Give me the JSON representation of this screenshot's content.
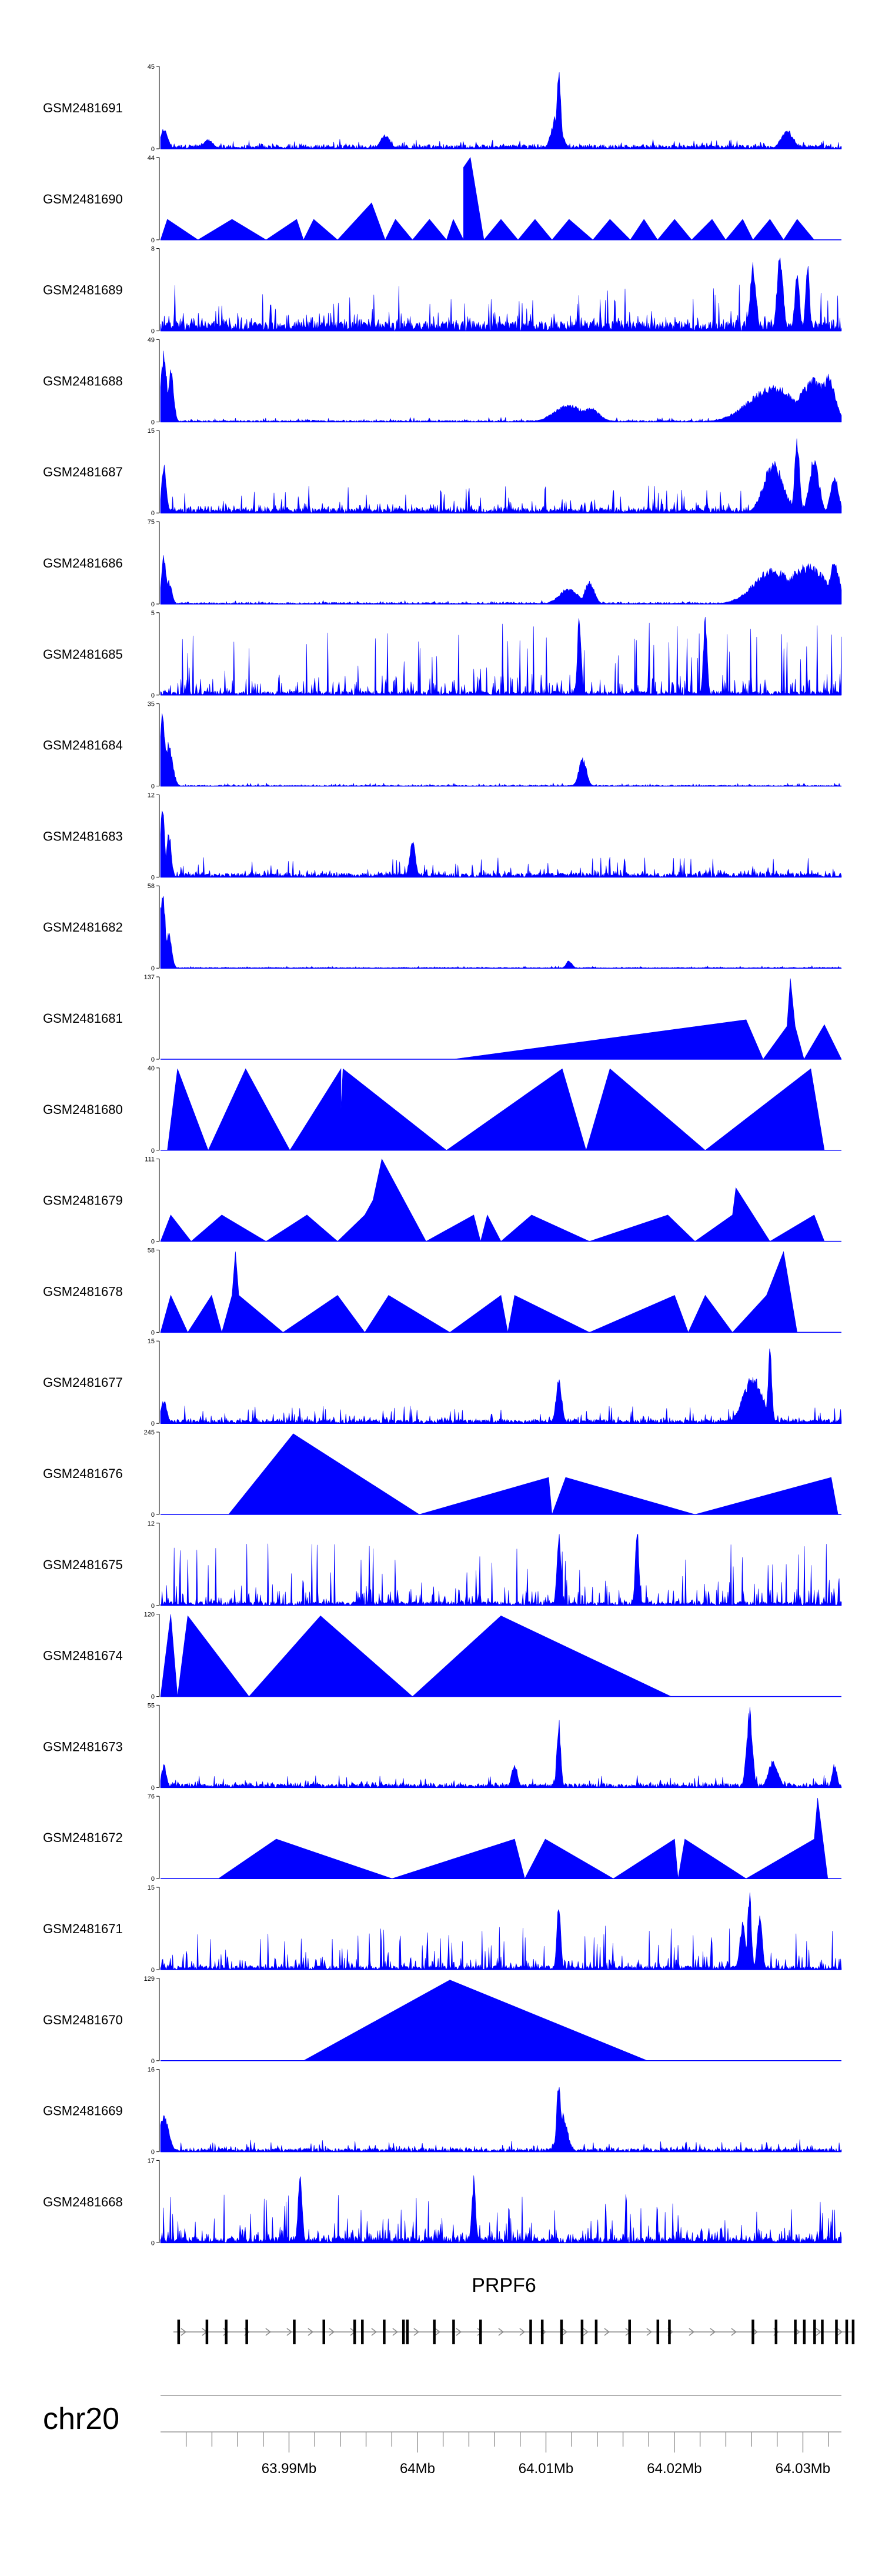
{
  "chart_data": {
    "type": "area",
    "title": "",
    "chromosome": "chr20",
    "gene": {
      "name": "PRPF6",
      "strand": "+",
      "start_mb": 63.981,
      "end_mb": 64.034,
      "exons_mb": [
        63.9814,
        63.9836,
        63.9851,
        63.9867,
        63.9904,
        63.9927,
        63.9951,
        63.9957,
        63.9974,
        63.9989,
        63.9992,
        64.0013,
        64.0028,
        64.0049,
        64.0088,
        64.0097,
        64.0112,
        64.0128,
        64.0139,
        64.0165,
        64.0187,
        64.0196,
        64.0261,
        64.0279,
        64.0294,
        64.0301,
        64.0309,
        64.0315,
        64.0326,
        64.0334,
        64.0339
      ]
    },
    "xaxis": {
      "range_mb": [
        63.98,
        64.033
      ],
      "tick_labels": [
        "63.99Mb",
        "64Mb",
        "64.01Mb",
        "64.02Mb",
        "64.03Mb"
      ],
      "tick_values_mb": [
        63.99,
        64.0,
        64.01,
        64.02,
        64.03
      ]
    },
    "fill_color": "#0000ff",
    "series": [
      {
        "name": "GSM2481691",
        "ymax": 45,
        "kind": "dense",
        "base": 0.05,
        "noise": 0.08,
        "peaks": [
          [
            0.585,
            1.0,
            0.004
          ],
          [
            0.582,
            0.45,
            0.01
          ],
          [
            0.92,
            0.25,
            0.012
          ],
          [
            0.005,
            0.25,
            0.008
          ],
          [
            0.33,
            0.18,
            0.01
          ],
          [
            0.07,
            0.12,
            0.01
          ]
        ]
      },
      {
        "name": "GSM2481690",
        "ymax": 44,
        "kind": "triangles",
        "pts": [
          [
            0.0,
            0
          ],
          [
            0.01,
            0.25
          ],
          [
            0.055,
            0
          ],
          [
            0.105,
            0.25
          ],
          [
            0.155,
            0
          ],
          [
            0.2,
            0.25
          ],
          [
            0.21,
            0
          ],
          [
            0.225,
            0.25
          ],
          [
            0.26,
            0
          ],
          [
            0.31,
            0.45
          ],
          [
            0.33,
            0
          ],
          [
            0.345,
            0.25
          ],
          [
            0.37,
            0
          ],
          [
            0.395,
            0.25
          ],
          [
            0.42,
            0
          ],
          [
            0.43,
            0.25
          ],
          [
            0.445,
            0
          ],
          [
            0.445,
            0.88
          ],
          [
            0.455,
            1.0
          ],
          [
            0.475,
            0
          ],
          [
            0.5,
            0.25
          ],
          [
            0.525,
            0
          ],
          [
            0.55,
            0.25
          ],
          [
            0.575,
            0
          ],
          [
            0.6,
            0.25
          ],
          [
            0.635,
            0
          ],
          [
            0.66,
            0.25
          ],
          [
            0.69,
            0
          ],
          [
            0.71,
            0.25
          ],
          [
            0.73,
            0
          ],
          [
            0.755,
            0.25
          ],
          [
            0.78,
            0
          ],
          [
            0.81,
            0.25
          ],
          [
            0.83,
            0
          ],
          [
            0.855,
            0.25
          ],
          [
            0.87,
            0
          ],
          [
            0.895,
            0.25
          ],
          [
            0.915,
            0
          ],
          [
            0.935,
            0.25
          ],
          [
            0.96,
            0
          ]
        ]
      },
      {
        "name": "GSM2481689",
        "ymax": 8,
        "kind": "dense",
        "base": 0.12,
        "noise": 0.5,
        "peaks": [
          [
            0.87,
            0.85,
            0.006
          ],
          [
            0.91,
            1.0,
            0.006
          ],
          [
            0.935,
            0.7,
            0.005
          ],
          [
            0.95,
            0.9,
            0.004
          ]
        ]
      },
      {
        "name": "GSM2481688",
        "ymax": 49,
        "kind": "dense",
        "base": 0.02,
        "noise": 0.04,
        "peaks": [
          [
            0.005,
            0.9,
            0.006
          ],
          [
            0.015,
            0.65,
            0.006
          ],
          [
            0.6,
            0.22,
            0.03
          ],
          [
            0.63,
            0.18,
            0.02
          ],
          [
            0.9,
            0.45,
            0.05
          ],
          [
            0.96,
            0.55,
            0.03
          ],
          [
            0.98,
            0.6,
            0.015
          ]
        ]
      },
      {
        "name": "GSM2481687",
        "ymax": 15,
        "kind": "dense",
        "base": 0.06,
        "noise": 0.28,
        "peaks": [
          [
            0.005,
            0.6,
            0.005
          ],
          [
            0.9,
            0.65,
            0.02
          ],
          [
            0.935,
            1.0,
            0.005
          ],
          [
            0.96,
            0.7,
            0.01
          ],
          [
            0.99,
            0.5,
            0.008
          ]
        ]
      },
      {
        "name": "GSM2481686",
        "ymax": 75,
        "kind": "dense",
        "base": 0.02,
        "noise": 0.03,
        "peaks": [
          [
            0.005,
            0.6,
            0.005
          ],
          [
            0.012,
            0.3,
            0.006
          ],
          [
            0.6,
            0.2,
            0.02
          ],
          [
            0.63,
            0.28,
            0.01
          ],
          [
            0.9,
            0.45,
            0.04
          ],
          [
            0.95,
            0.5,
            0.04
          ],
          [
            0.99,
            0.55,
            0.01
          ]
        ]
      },
      {
        "name": "GSM2481685",
        "ymax": 5,
        "kind": "dense",
        "base": 0.05,
        "noise": 0.85,
        "peaks": [
          [
            0.615,
            1.0,
            0.004
          ],
          [
            0.8,
            0.95,
            0.004
          ]
        ]
      },
      {
        "name": "GSM2481684",
        "ymax": 35,
        "kind": "dense",
        "base": 0.01,
        "noise": 0.03,
        "peaks": [
          [
            0.003,
            0.9,
            0.006
          ],
          [
            0.012,
            0.55,
            0.008
          ],
          [
            0.62,
            0.35,
            0.008
          ]
        ]
      },
      {
        "name": "GSM2481683",
        "ymax": 12,
        "kind": "dense",
        "base": 0.05,
        "noise": 0.22,
        "peaks": [
          [
            0.003,
            0.95,
            0.004
          ],
          [
            0.012,
            0.6,
            0.005
          ],
          [
            0.37,
            0.45,
            0.006
          ]
        ]
      },
      {
        "name": "GSM2481682",
        "ymax": 58,
        "kind": "dense",
        "base": 0.01,
        "noise": 0.02,
        "peaks": [
          [
            0.003,
            0.95,
            0.006
          ],
          [
            0.012,
            0.45,
            0.006
          ],
          [
            0.6,
            0.1,
            0.006
          ]
        ]
      },
      {
        "name": "GSM2481681",
        "ymax": 137,
        "kind": "triangles",
        "pts": [
          [
            0.43,
            0
          ],
          [
            0.86,
            0.48
          ],
          [
            0.885,
            0
          ],
          [
            0.92,
            0.4
          ],
          [
            0.925,
            0.98
          ],
          [
            0.932,
            0.4
          ],
          [
            0.945,
            0
          ],
          [
            0.975,
            0.42
          ],
          [
            1.0,
            0
          ]
        ]
      },
      {
        "name": "GSM2481680",
        "ymax": 40,
        "kind": "triangles",
        "pts": [
          [
            0.01,
            0
          ],
          [
            0.025,
            0.99
          ],
          [
            0.07,
            0
          ],
          [
            0.125,
            0.99
          ],
          [
            0.19,
            0
          ],
          [
            0.265,
            0.99
          ],
          [
            0.265,
            0.5
          ],
          [
            0.268,
            0.99
          ],
          [
            0.42,
            0
          ],
          [
            0.59,
            0.99
          ],
          [
            0.625,
            0
          ],
          [
            0.66,
            0.99
          ],
          [
            0.8,
            0
          ],
          [
            0.955,
            0.99
          ],
          [
            0.975,
            0
          ]
        ]
      },
      {
        "name": "GSM2481679",
        "ymax": 111,
        "kind": "triangles",
        "pts": [
          [
            0.0,
            0
          ],
          [
            0.015,
            0.32
          ],
          [
            0.045,
            0
          ],
          [
            0.09,
            0.32
          ],
          [
            0.155,
            0
          ],
          [
            0.215,
            0.32
          ],
          [
            0.26,
            0
          ],
          [
            0.3,
            0.32
          ],
          [
            0.312,
            0.5
          ],
          [
            0.325,
            1.0
          ],
          [
            0.39,
            0
          ],
          [
            0.46,
            0.32
          ],
          [
            0.47,
            0
          ],
          [
            0.48,
            0.32
          ],
          [
            0.5,
            0
          ],
          [
            0.545,
            0.32
          ],
          [
            0.63,
            0
          ],
          [
            0.745,
            0.32
          ],
          [
            0.785,
            0
          ],
          [
            0.84,
            0.32
          ],
          [
            0.845,
            0.65
          ],
          [
            0.895,
            0
          ],
          [
            0.96,
            0.32
          ],
          [
            0.975,
            0
          ]
        ]
      },
      {
        "name": "GSM2481678",
        "ymax": 58,
        "kind": "triangles",
        "pts": [
          [
            0.0,
            0
          ],
          [
            0.015,
            0.45
          ],
          [
            0.04,
            0
          ],
          [
            0.075,
            0.45
          ],
          [
            0.09,
            0
          ],
          [
            0.105,
            0.45
          ],
          [
            0.11,
            0.98
          ],
          [
            0.115,
            0.45
          ],
          [
            0.18,
            0
          ],
          [
            0.26,
            0.45
          ],
          [
            0.3,
            0
          ],
          [
            0.335,
            0.45
          ],
          [
            0.425,
            0
          ],
          [
            0.5,
            0.45
          ],
          [
            0.51,
            0
          ],
          [
            0.52,
            0.45
          ],
          [
            0.63,
            0
          ],
          [
            0.755,
            0.45
          ],
          [
            0.775,
            0
          ],
          [
            0.8,
            0.45
          ],
          [
            0.84,
            0
          ],
          [
            0.89,
            0.45
          ],
          [
            0.915,
            0.98
          ],
          [
            0.935,
            0
          ]
        ]
      },
      {
        "name": "GSM2481677",
        "ymax": 15,
        "kind": "dense",
        "base": 0.05,
        "noise": 0.2,
        "peaks": [
          [
            0.005,
            0.3,
            0.006
          ],
          [
            0.585,
            0.55,
            0.006
          ],
          [
            0.87,
            0.6,
            0.02
          ],
          [
            0.895,
            0.95,
            0.004
          ]
        ]
      },
      {
        "name": "GSM2481676",
        "ymax": 245,
        "kind": "triangles",
        "pts": [
          [
            0.1,
            0
          ],
          [
            0.195,
            0.98
          ],
          [
            0.38,
            0
          ],
          [
            0.57,
            0.45
          ],
          [
            0.575,
            0
          ],
          [
            0.595,
            0.45
          ],
          [
            0.785,
            0
          ],
          [
            0.985,
            0.45
          ],
          [
            0.995,
            0
          ]
        ]
      },
      {
        "name": "GSM2481675",
        "ymax": 12,
        "kind": "dense",
        "base": 0.05,
        "noise": 0.75,
        "peaks": [
          [
            0.585,
            1.0,
            0.004
          ],
          [
            0.7,
            0.95,
            0.004
          ]
        ]
      },
      {
        "name": "GSM2481674",
        "ymax": 120,
        "kind": "triangles",
        "pts": [
          [
            0.0,
            0
          ],
          [
            0.015,
            1.0
          ],
          [
            0.025,
            0
          ],
          [
            0.04,
            0.98
          ],
          [
            0.13,
            0
          ],
          [
            0.235,
            0.98
          ],
          [
            0.37,
            0
          ],
          [
            0.5,
            0.98
          ],
          [
            0.75,
            0
          ]
        ]
      },
      {
        "name": "GSM2481673",
        "ymax": 55,
        "kind": "dense",
        "base": 0.05,
        "noise": 0.12,
        "peaks": [
          [
            0.005,
            0.3,
            0.005
          ],
          [
            0.585,
            0.85,
            0.004
          ],
          [
            0.52,
            0.3,
            0.006
          ],
          [
            0.865,
            1.0,
            0.006
          ],
          [
            0.9,
            0.35,
            0.01
          ],
          [
            0.99,
            0.3,
            0.005
          ]
        ]
      },
      {
        "name": "GSM2481672",
        "ymax": 76,
        "kind": "triangles",
        "pts": [
          [
            0.085,
            0
          ],
          [
            0.17,
            0.48
          ],
          [
            0.34,
            0
          ],
          [
            0.52,
            0.48
          ],
          [
            0.535,
            0
          ],
          [
            0.565,
            0.48
          ],
          [
            0.665,
            0
          ],
          [
            0.755,
            0.48
          ],
          [
            0.76,
            0
          ],
          [
            0.77,
            0.48
          ],
          [
            0.86,
            0
          ],
          [
            0.96,
            0.48
          ],
          [
            0.965,
            0.98
          ],
          [
            0.98,
            0
          ]
        ]
      },
      {
        "name": "GSM2481671",
        "ymax": 15,
        "kind": "dense",
        "base": 0.05,
        "noise": 0.5,
        "peaks": [
          [
            0.585,
            0.85,
            0.004
          ],
          [
            0.855,
            0.6,
            0.006
          ],
          [
            0.865,
            1.0,
            0.004
          ],
          [
            0.88,
            0.7,
            0.005
          ]
        ]
      },
      {
        "name": "GSM2481670",
        "ymax": 129,
        "kind": "triangles",
        "pts": [
          [
            0.21,
            0
          ],
          [
            0.425,
            0.98
          ],
          [
            0.715,
            0
          ]
        ]
      },
      {
        "name": "GSM2481669",
        "ymax": 16,
        "kind": "dense",
        "base": 0.04,
        "noise": 0.12,
        "peaks": [
          [
            0.005,
            0.45,
            0.01
          ],
          [
            0.585,
            0.98,
            0.004
          ],
          [
            0.59,
            0.5,
            0.01
          ]
        ]
      },
      {
        "name": "GSM2481668",
        "ymax": 17,
        "kind": "dense",
        "base": 0.07,
        "noise": 0.55,
        "peaks": [
          [
            0.205,
            1.0,
            0.004
          ],
          [
            0.46,
            0.85,
            0.004
          ]
        ]
      }
    ]
  }
}
